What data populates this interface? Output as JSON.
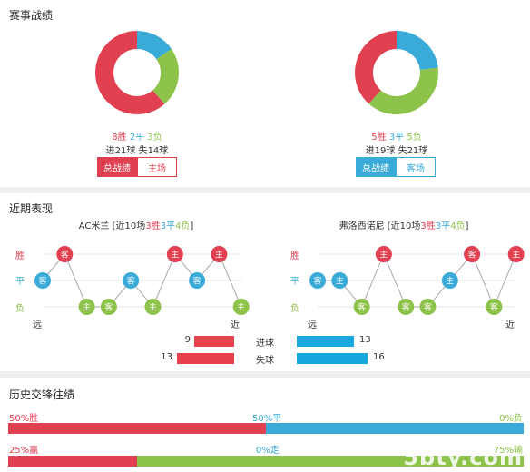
{
  "sections": {
    "record_title": "赛事战绩",
    "recent_title": "近期表现",
    "h2h_title": "历史交锋往绩"
  },
  "home": {
    "wins": "8胜",
    "draws": "2平",
    "losses": "3负",
    "goals": "进21球  失14球",
    "tab_all": "总战绩",
    "tab_venue": "主场",
    "donut": {
      "wins": 8,
      "draws": 2,
      "losses": 3
    },
    "recent_name": "AC米兰",
    "recent_prefix": " [近10场",
    "recent_w": "3胜",
    "recent_d": "3平",
    "recent_l": "4负",
    "recent_suffix": "]",
    "form": [
      {
        "result": "D",
        "venue": "客"
      },
      {
        "result": "W",
        "venue": "客"
      },
      {
        "result": "L",
        "venue": "主"
      },
      {
        "result": "L",
        "venue": "客"
      },
      {
        "result": "D",
        "venue": "客"
      },
      {
        "result": "L",
        "venue": "主"
      },
      {
        "result": "W",
        "venue": "主"
      },
      {
        "result": "D",
        "venue": "客"
      },
      {
        "result": "W",
        "venue": "主"
      },
      {
        "result": "L",
        "venue": "主"
      }
    ]
  },
  "away": {
    "wins": "5胜",
    "draws": "3平",
    "losses": "5负",
    "goals": "进19球  失21球",
    "tab_all": "总战绩",
    "tab_venue": "客场",
    "donut": {
      "wins": 5,
      "draws": 3,
      "losses": 5
    },
    "recent_name": "弗洛西诺尼",
    "recent_prefix": " [近10场",
    "recent_w": "3胜",
    "recent_d": "3平",
    "recent_l": "4负",
    "recent_suffix": "]",
    "form": [
      {
        "result": "D",
        "venue": "客"
      },
      {
        "result": "D",
        "venue": "主"
      },
      {
        "result": "L",
        "venue": "客"
      },
      {
        "result": "W",
        "venue": "主"
      },
      {
        "result": "L",
        "venue": "客"
      },
      {
        "result": "L",
        "venue": "客"
      },
      {
        "result": "D",
        "venue": "主"
      },
      {
        "result": "W",
        "venue": "客"
      },
      {
        "result": "L",
        "venue": "客"
      },
      {
        "result": "W",
        "venue": "主"
      }
    ]
  },
  "form_axis": {
    "win": "胜",
    "draw": "平",
    "loss": "负",
    "far": "远",
    "near": "近"
  },
  "compare": {
    "goals_label": "进球",
    "home_goals": 9,
    "away_goals": 13,
    "conceded_label": "失球",
    "home_conceded": 13,
    "away_conceded": 16,
    "max": 16
  },
  "h2h": {
    "row1_left": "50%胜",
    "row1_mid": "50%平",
    "row1_right": "0%负",
    "row1_values": {
      "win": 50,
      "draw": 50,
      "loss": 0
    },
    "row2_left": "25%赢",
    "row2_mid": "0%走",
    "row2_right": "75%输",
    "row2_values": {
      "win": 25,
      "push": 0,
      "lose": 75
    }
  },
  "watermark": "5bty.com",
  "colors": {
    "win": "#e04050",
    "draw": "#3aaad8",
    "loss": "#8dc34a",
    "goals_bar": "#e8414b",
    "away_bar": "#18a8e0"
  }
}
